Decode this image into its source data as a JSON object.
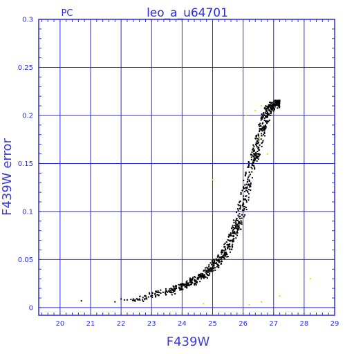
{
  "chart_data": {
    "type": "scatter",
    "title": "leo_a_u64701",
    "corner_label": "PC",
    "xlabel": "F439W",
    "ylabel": "F439W error",
    "xlim": [
      19.3,
      29.0
    ],
    "ylim": [
      -0.008,
      0.3
    ],
    "x_ticks": [
      20,
      21,
      22,
      23,
      24,
      25,
      26,
      27,
      28,
      29
    ],
    "y_ticks": [
      0,
      0.05,
      0.1,
      0.15,
      0.2,
      0.25,
      0.3
    ],
    "y_tick_labels": [
      "0",
      "0.05",
      "0.1",
      "0.15",
      "0.2",
      "0.25",
      "0.3"
    ],
    "grid": true,
    "colors": {
      "axis": "#2b2bd6",
      "grid": "#2b2bd6",
      "main_points": "#000000",
      "secondary_points": "#e8d800"
    },
    "series": [
      {
        "color": "#000000",
        "points": [
          [
            20.7,
            0.007
          ],
          [
            21.8,
            0.006
          ],
          [
            22.0,
            0.009
          ],
          [
            22.2,
            0.008
          ],
          [
            22.4,
            0.009
          ],
          [
            22.6,
            0.009
          ],
          [
            22.9,
            0.011
          ],
          [
            23.0,
            0.012
          ],
          [
            23.3,
            0.015
          ],
          [
            23.5,
            0.017
          ],
          [
            23.6,
            0.016
          ],
          [
            23.7,
            0.019
          ],
          [
            23.8,
            0.02
          ],
          [
            23.9,
            0.021
          ],
          [
            24.0,
            0.022
          ],
          [
            24.1,
            0.022
          ],
          [
            24.2,
            0.025
          ],
          [
            24.3,
            0.026
          ],
          [
            24.4,
            0.029
          ],
          [
            24.5,
            0.03
          ],
          [
            24.6,
            0.032
          ],
          [
            24.7,
            0.033
          ],
          [
            24.8,
            0.035
          ],
          [
            24.9,
            0.04
          ],
          [
            25.0,
            0.042
          ],
          [
            25.1,
            0.046
          ],
          [
            25.2,
            0.05
          ],
          [
            25.3,
            0.053
          ],
          [
            25.4,
            0.057
          ],
          [
            25.5,
            0.063
          ],
          [
            25.6,
            0.07
          ],
          [
            25.7,
            0.077
          ],
          [
            25.8,
            0.085
          ],
          [
            25.9,
            0.095
          ],
          [
            26.0,
            0.108
          ],
          [
            26.1,
            0.122
          ],
          [
            26.2,
            0.137
          ],
          [
            26.3,
            0.15
          ],
          [
            26.4,
            0.16
          ],
          [
            26.5,
            0.172
          ],
          [
            26.6,
            0.185
          ],
          [
            26.7,
            0.195
          ],
          [
            26.8,
            0.203
          ],
          [
            26.9,
            0.208
          ],
          [
            27.0,
            0.212
          ],
          [
            27.1,
            0.213
          ],
          [
            27.2,
            0.215
          ]
        ],
        "spread": 0.3,
        "upper_cutoff": 0.216,
        "count": 900
      },
      {
        "color": "#e8d800",
        "points": [
          [
            24.7,
            0.004
          ],
          [
            26.2,
            0.003
          ],
          [
            26.6,
            0.006
          ],
          [
            27.2,
            0.012
          ],
          [
            28.2,
            0.03
          ],
          [
            25.0,
            0.133
          ],
          [
            26.1,
            0.2
          ],
          [
            26.4,
            0.205
          ],
          [
            26.5,
            0.177
          ],
          [
            26.8,
            0.16
          ],
          [
            26.6,
            0.21
          ]
        ]
      }
    ]
  }
}
